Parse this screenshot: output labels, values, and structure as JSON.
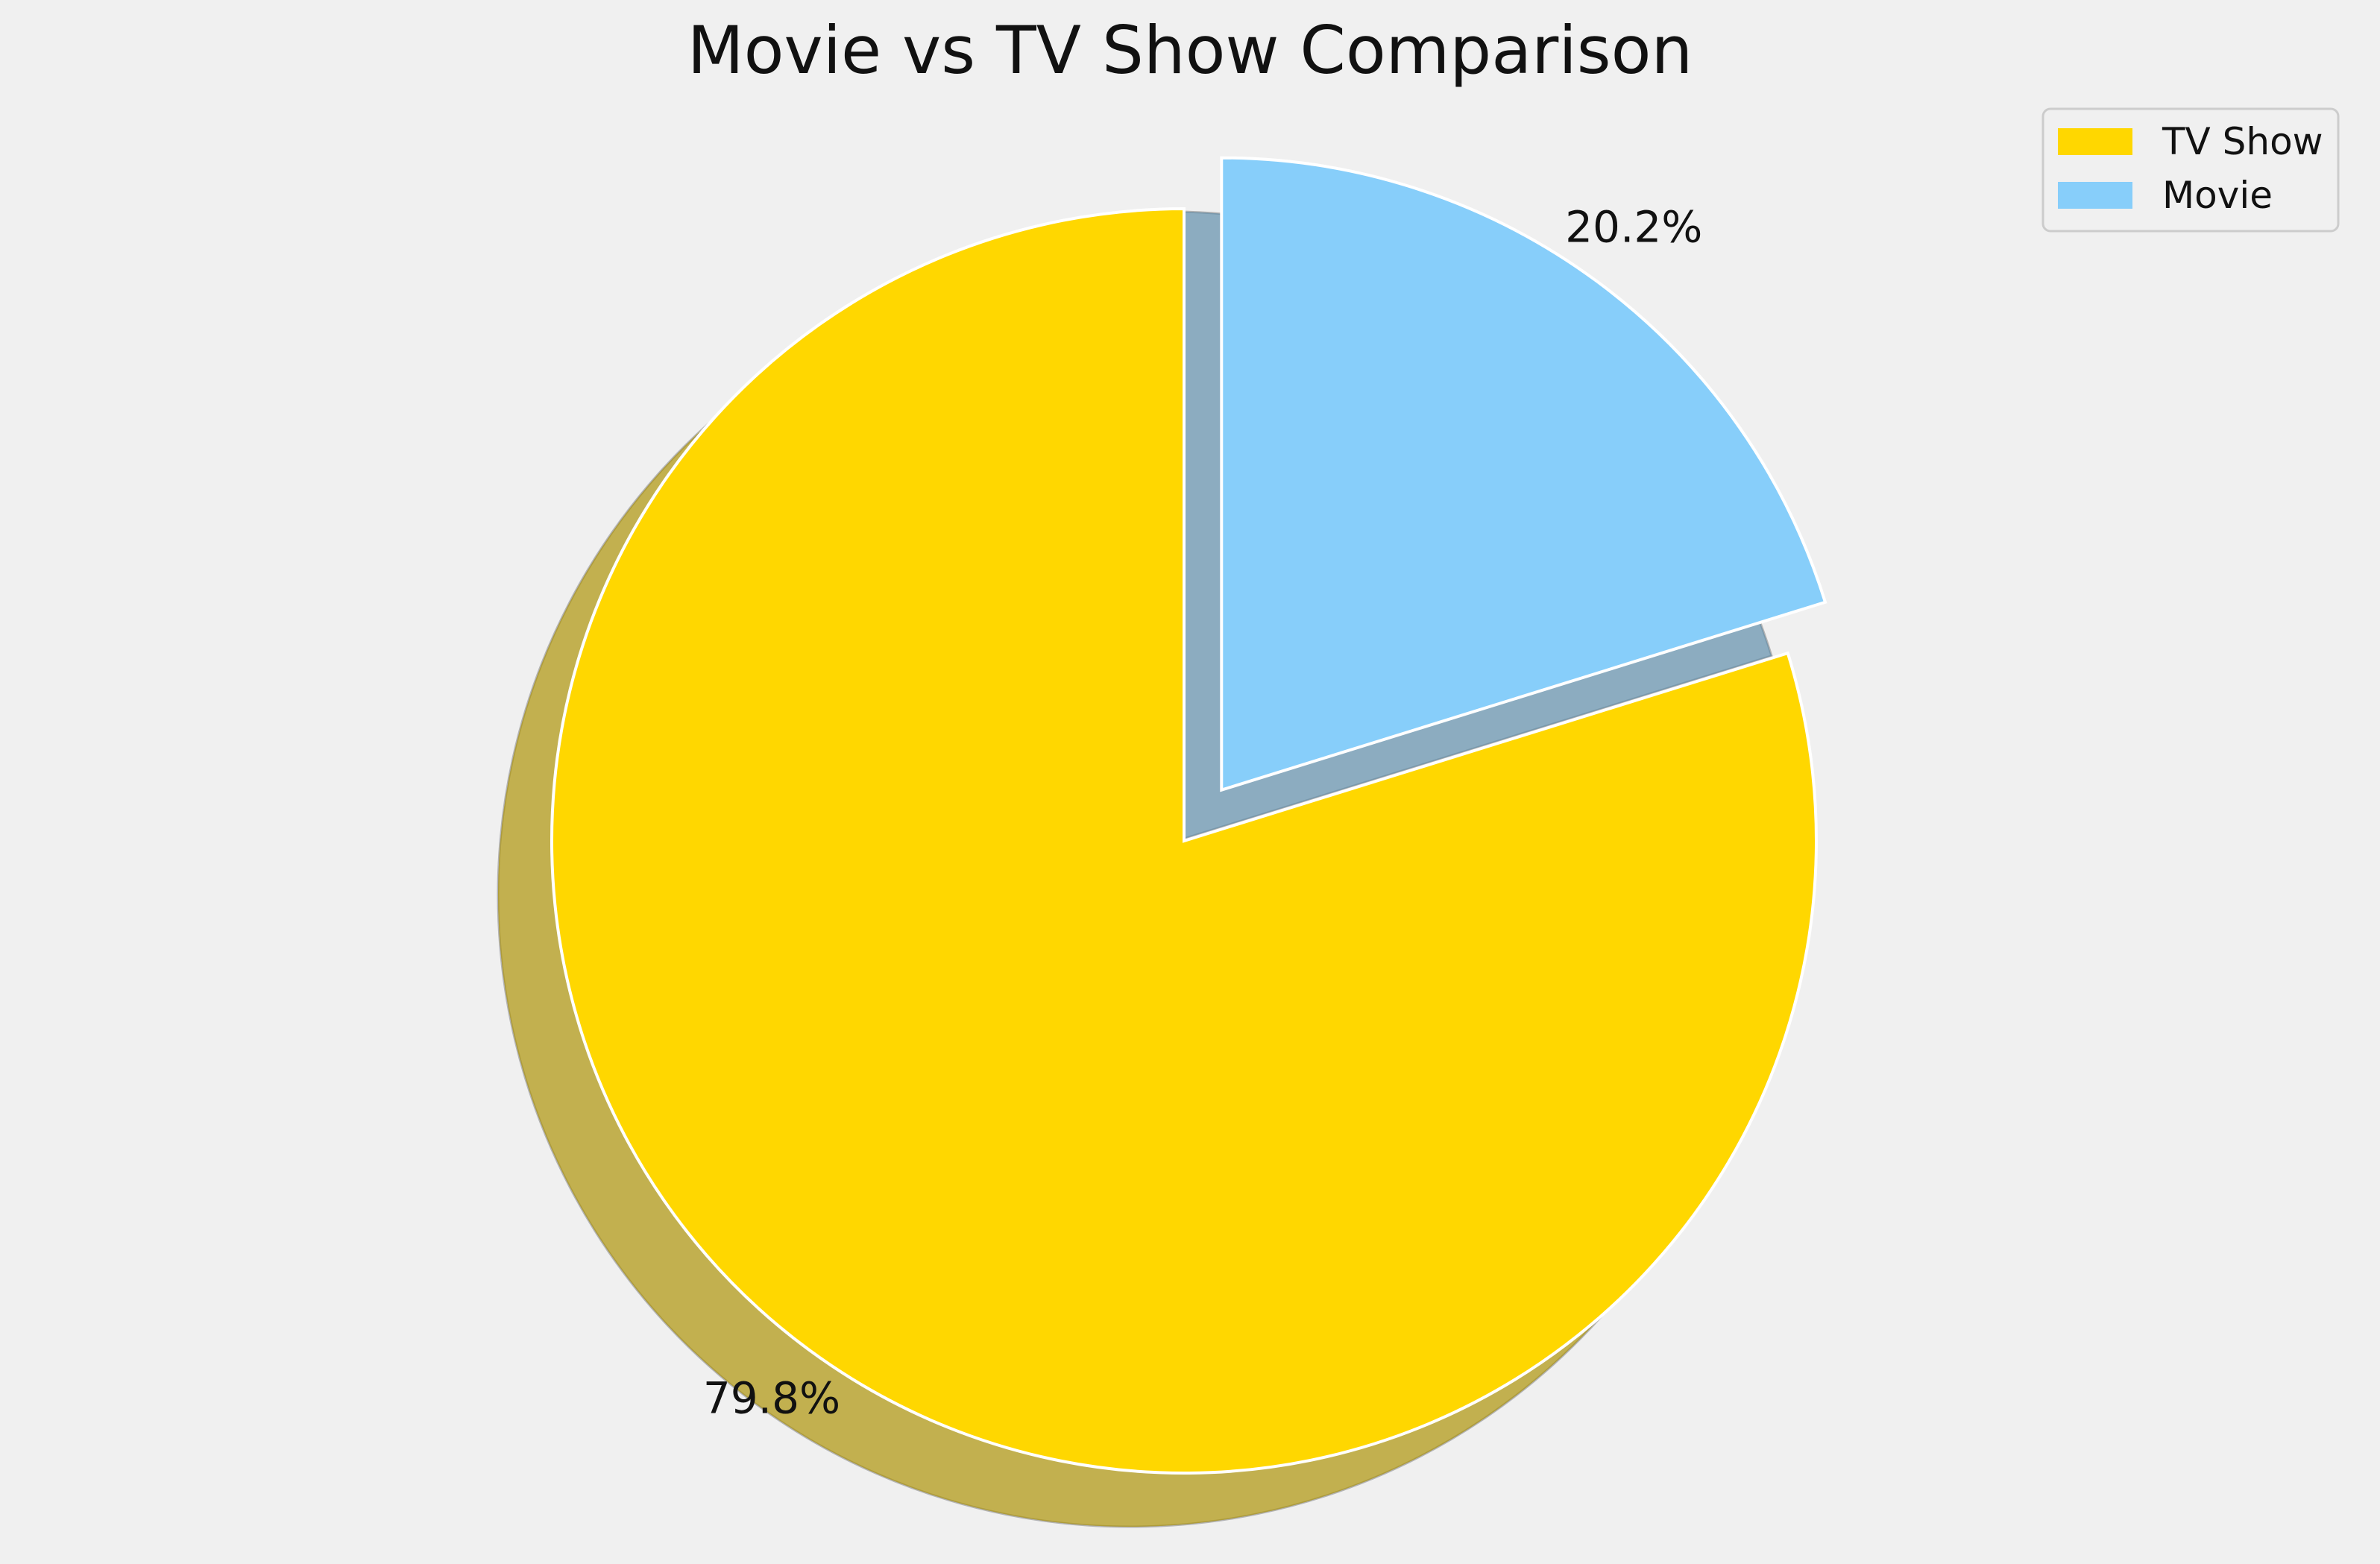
{
  "chart_data": {
    "type": "pie",
    "title": "Movie vs TV Show Comparison",
    "slices": [
      {
        "label": "TV Show",
        "value": 79.8,
        "pct_label": "79.8%",
        "color": "#FFD700",
        "explode": 0
      },
      {
        "label": "Movie",
        "value": 20.2,
        "pct_label": "20.2%",
        "color": "#87CEFA",
        "explode": 0.1
      }
    ],
    "start_angle_deg": 90,
    "direction": "counterclockwise",
    "shadow": true,
    "legend": {
      "placement": "top-right",
      "entries": [
        "TV Show",
        "Movie"
      ]
    }
  }
}
